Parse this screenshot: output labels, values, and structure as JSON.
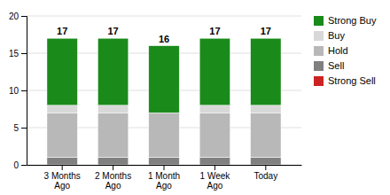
{
  "chart_data": {
    "type": "bar",
    "stacked": true,
    "categories": [
      "3 Months\nAgo",
      "2 Months\nAgo",
      "1 Month\nAgo",
      "1 Week\nAgo",
      "Today"
    ],
    "series": [
      {
        "name": "Strong Sell",
        "color": "#cc2222",
        "values": [
          0,
          0,
          0,
          0,
          0
        ]
      },
      {
        "name": "Sell",
        "color": "#808080",
        "values": [
          1,
          1,
          1,
          1,
          1
        ]
      },
      {
        "name": "Hold",
        "color": "#b8b8b8",
        "values": [
          6,
          6,
          6,
          6,
          6
        ]
      },
      {
        "name": "Buy",
        "color": "#d8d8d8",
        "values": [
          1,
          1,
          0,
          1,
          1
        ]
      },
      {
        "name": "Strong Buy",
        "color": "#1a8a1a",
        "values": [
          9,
          9,
          9,
          9,
          9
        ]
      }
    ],
    "totals": [
      17,
      17,
      16,
      17,
      17
    ],
    "ylim": [
      0,
      20
    ],
    "yticks": [
      0,
      5,
      10,
      15,
      20
    ],
    "grid": true,
    "legend": "right"
  }
}
